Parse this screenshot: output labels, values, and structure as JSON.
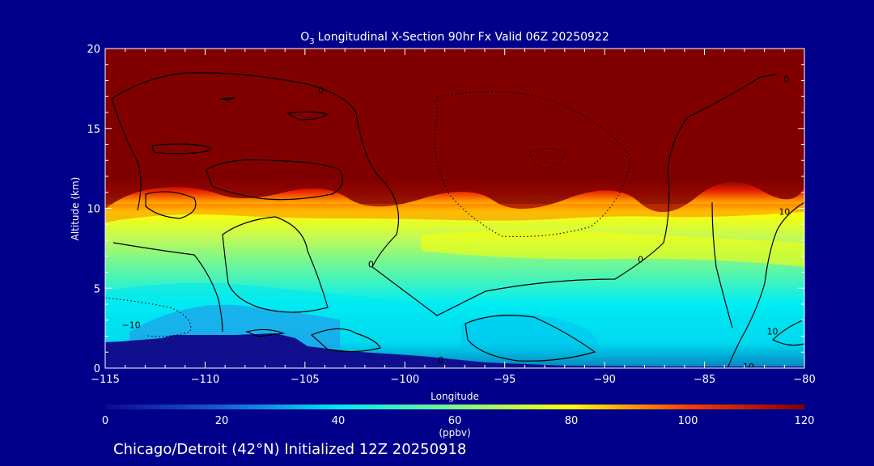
{
  "chart_data": {
    "type": "heatmap",
    "title": "Longitudinal X-Section 90hr  Fx Valid 06Z 20250922",
    "title_species": {
      "base": "O",
      "subscript": "3"
    },
    "xlabel": "Longitude",
    "ylabel": "Altitude (km)",
    "xlim": [
      -115,
      -80
    ],
    "ylim": [
      0,
      20
    ],
    "x_ticks": [
      -115,
      -110,
      -105,
      -100,
      -95,
      -90,
      -85,
      -80
    ],
    "x_tick_labels": [
      "−115",
      "−110",
      "−105",
      "−100",
      "−95",
      "−90",
      "−85",
      "−80"
    ],
    "y_ticks": [
      0,
      5,
      10,
      15,
      20
    ],
    "y_tick_labels": [
      "0",
      "5",
      "10",
      "15",
      "20"
    ],
    "colorbar": {
      "label": "(ppbv)",
      "min": 0,
      "max": 120,
      "ticks": [
        0,
        20,
        40,
        60,
        80,
        100,
        120
      ],
      "tick_labels": [
        "0",
        "20",
        "40",
        "60",
        "80",
        "100",
        "120"
      ],
      "stops": [
        {
          "value": 0,
          "color": "#0a0a8a"
        },
        {
          "value": 20,
          "color": "#1a5cd8"
        },
        {
          "value": 40,
          "color": "#00e8f0"
        },
        {
          "value": 60,
          "color": "#7cf78c"
        },
        {
          "value": 80,
          "color": "#ffff00"
        },
        {
          "value": 100,
          "color": "#ff3c00"
        },
        {
          "value": 120,
          "color": "#800000"
        }
      ]
    },
    "contour_labels": [
      {
        "text": "0",
        "lon": -104.2,
        "alt": 17.4
      },
      {
        "text": "0",
        "lon": -101.7,
        "alt": 6.5
      },
      {
        "text": "0",
        "lon": -98.2,
        "alt": 0.5
      },
      {
        "text": "0",
        "lon": -88.2,
        "alt": 6.8
      },
      {
        "text": "0",
        "lon": -80.9,
        "alt": 18.1
      },
      {
        "text": "−10",
        "lon": -113.7,
        "alt": 2.7
      },
      {
        "text": "10",
        "lon": -81.0,
        "alt": 9.8
      },
      {
        "text": "10",
        "lon": -81.6,
        "alt": 2.3
      },
      {
        "text": "10",
        "lon": -82.8,
        "alt": 0.1
      }
    ],
    "footer": "Chicago/Detroit (42°N) Initialized 12Z 20250918"
  }
}
